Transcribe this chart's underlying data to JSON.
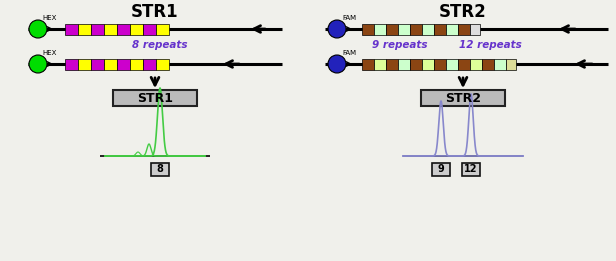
{
  "bg_color": "#f0f0eb",
  "str1_title": "STR1",
  "str2_title": "STR2",
  "hex_color": "#00dd00",
  "fam_color": "#2222bb",
  "hex_label": "HEX",
  "fam_label": "FAM",
  "str1_repeat_colors": [
    "#cc00cc",
    "#ffff00",
    "#cc00cc",
    "#ffff00",
    "#cc00cc",
    "#ffff00",
    "#cc00cc",
    "#ffff00"
  ],
  "str2_repeat_colors_allele1": [
    "#8B4513",
    "#ccffcc",
    "#8B4513",
    "#ccffcc",
    "#8B4513",
    "#ccffcc",
    "#8B4513",
    "#ccffcc",
    "#8B4513"
  ],
  "str2_repeat_colors_allele2": [
    "#8B4513",
    "#ddff99",
    "#8B4513",
    "#ccffcc",
    "#8B4513",
    "#ddff99",
    "#8B4513",
    "#ccffcc",
    "#8B4513",
    "#ddff99",
    "#8B4513",
    "#ccffcc"
  ],
  "str1_label8": "8 repeats",
  "str2_label9": "9 repeats",
  "str2_label12": "12 repeats",
  "str1_box_label": "STR1",
  "str2_box_label": "STR2",
  "str1_allele_label": "8",
  "str2_allele1_label": "9",
  "str2_allele2_label": "12",
  "peak1_color": "#44cc44",
  "peak2_color": "#8888cc",
  "label_color": "#6633cc",
  "fig_w": 6.16,
  "fig_h": 2.61,
  "dpi": 100
}
